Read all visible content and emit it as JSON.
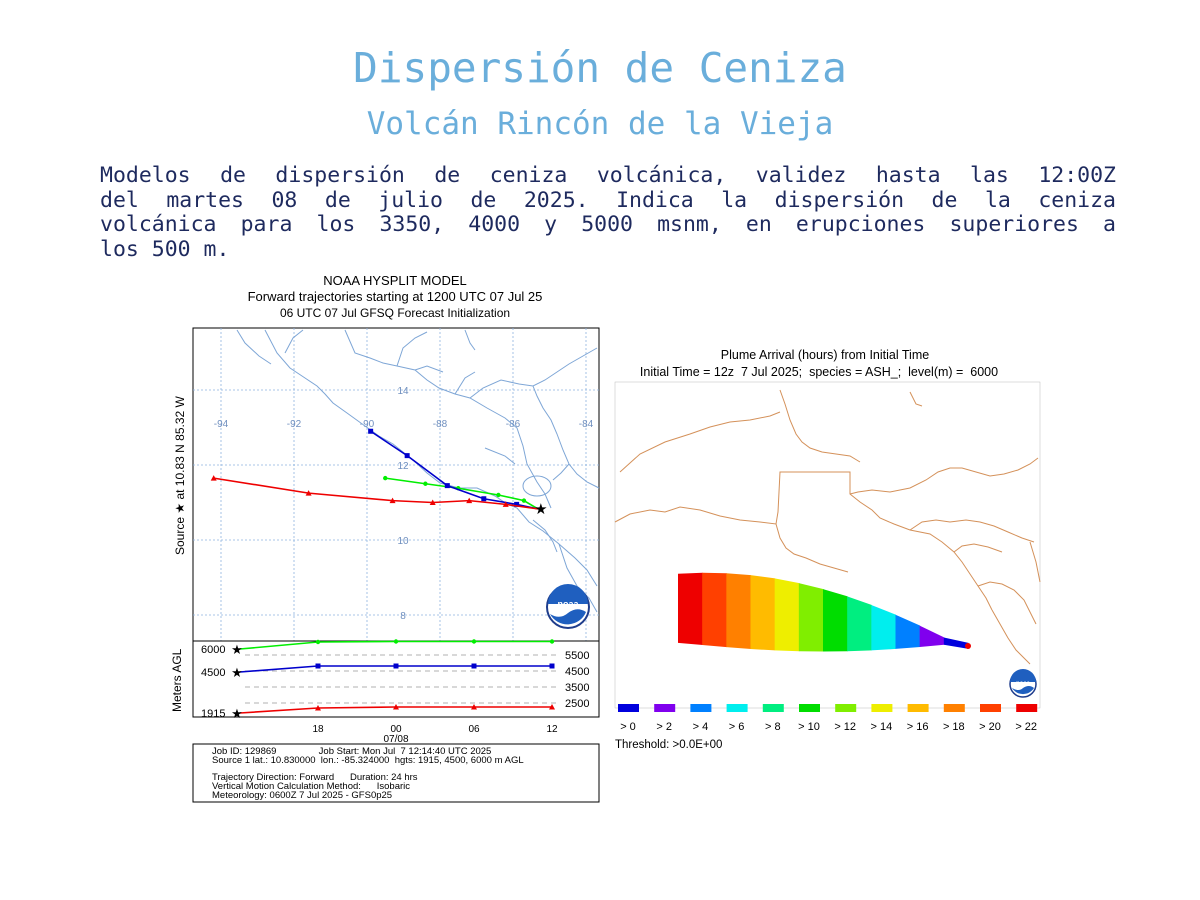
{
  "header": {
    "title": "Dispersión de Ceniza",
    "subtitle": "Volcán Rincón de la Vieja",
    "description_lines": [
      "Modelos de dispersión de ceniza volcánica, validez  hasta  las  12:00Z",
      "del martes 08 de julio de 2025. Indica  la  dispersión  de  la  ceniza",
      "volcánica para los 3350, 4000 y 5000 msnm, en erupciones superiores  a",
      "los 500 m."
    ]
  },
  "trajectory_map": {
    "title_lines": [
      "NOAA HYSPLIT MODEL",
      "Forward trajectories starting at 1200 UTC 07 Jul 25",
      "06 UTC 07 Jul    GFSQ  Forecast Initialization"
    ],
    "source_label": "Source ★  at    10.83 N   85.32 W",
    "lon_labels": [
      "-94",
      "-92",
      "-90",
      "-88",
      "-86",
      "-84"
    ],
    "lat_labels": [
      "14",
      "12",
      "10",
      "8"
    ],
    "source": {
      "lat": 10.83,
      "lon": -85.32
    },
    "trajectories": [
      {
        "height_m": 6000,
        "color": "#00ee00",
        "marker": "dot",
        "points": [
          [
            -85.32,
            10.83
          ],
          [
            -85.7,
            11.05
          ],
          [
            -86.4,
            11.2
          ],
          [
            -87.5,
            11.38
          ],
          [
            -88.4,
            11.5
          ],
          [
            -89.5,
            11.65
          ]
        ]
      },
      {
        "height_m": 4500,
        "color": "#0000cc",
        "marker": "square",
        "points": [
          [
            -85.32,
            10.83
          ],
          [
            -85.9,
            10.95
          ],
          [
            -86.8,
            11.1
          ],
          [
            -87.8,
            11.45
          ],
          [
            -88.9,
            12.25
          ],
          [
            -89.9,
            12.9
          ]
        ]
      },
      {
        "height_m": 1915,
        "color": "#ee0000",
        "marker": "triangle",
        "points": [
          [
            -85.32,
            10.83
          ],
          [
            -86.2,
            10.95
          ],
          [
            -87.2,
            11.05
          ],
          [
            -88.2,
            11.0
          ],
          [
            -89.3,
            11.05
          ],
          [
            -91.6,
            11.25
          ],
          [
            -94.2,
            11.65
          ]
        ]
      }
    ],
    "vertical_panel": {
      "ylabel": "Meters AGL",
      "left_labels": [
        "6000",
        "4500",
        "1915"
      ],
      "right_labels": [
        "5500",
        "4500",
        "3500",
        "2500"
      ],
      "time_labels": [
        "18",
        "00",
        "06",
        "12"
      ],
      "date_label": "07/08"
    },
    "info_lines": [
      "Job ID: 129869                Job Start: Mon Jul  7 12:14:40 UTC 2025",
      "Source 1 lat.: 10.830000  lon.: -85.324000  hgts: 1915, 4500, 6000 m AGL",
      "Trajectory Direction: Forward      Duration: 24 hrs",
      "Vertical Motion Calculation Method:      Isobaric",
      "Meteorology: 0600Z 7 Jul 2025 - GFS0p25"
    ],
    "logo_text": "noaa"
  },
  "plume_map": {
    "title_lines": [
      "Plume Arrival (hours) from Initial Time",
      "Initial Time = 12z  7 Jul 2025;  species = ASH_;  level(m) =  6000"
    ],
    "legend": [
      {
        "label": "> 0",
        "color": "#0000dd"
      },
      {
        "label": "> 2",
        "color": "#8000ee"
      },
      {
        "label": "> 4",
        "color": "#0080ff"
      },
      {
        "label": "> 6",
        "color": "#00eeee"
      },
      {
        "label": "> 8",
        "color": "#00ee80"
      },
      {
        "label": "> 10",
        "color": "#00dd00"
      },
      {
        "label": "> 12",
        "color": "#80ee00"
      },
      {
        "label": "> 14",
        "color": "#eeee00"
      },
      {
        "label": "> 16",
        "color": "#ffbb00"
      },
      {
        "label": "> 18",
        "color": "#ff8000"
      },
      {
        "label": "> 20",
        "color": "#ff4000"
      },
      {
        "label": "> 22",
        "color": "#ee0000"
      }
    ],
    "threshold": "Threshold: >0.0E+00",
    "logo_text": "noaa"
  }
}
